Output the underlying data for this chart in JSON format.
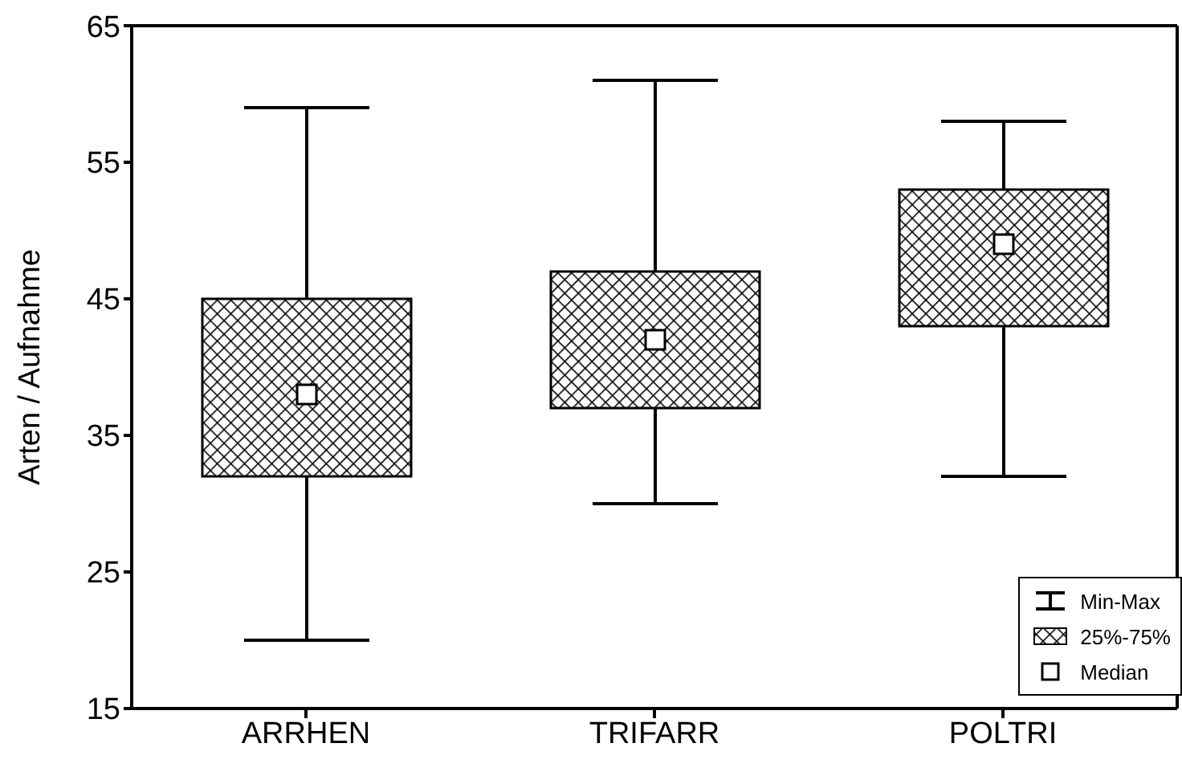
{
  "chart_data": {
    "type": "box",
    "ylabel": "Arten / Aufnahme",
    "categories": [
      "ARRHEN",
      "TRIFARR",
      "POLTRI"
    ],
    "boxes": [
      {
        "low": 20,
        "q1": 32,
        "median": 38,
        "q3": 45,
        "high": 59
      },
      {
        "low": 30,
        "q1": 37,
        "median": 42,
        "q3": 47,
        "high": 61
      },
      {
        "low": 32,
        "q1": 43,
        "median": 49,
        "q3": 53,
        "high": 58
      }
    ],
    "ylim": [
      15,
      65
    ],
    "yticks": [
      15,
      25,
      35,
      45,
      55,
      65
    ],
    "annotations": [
      "Min-Max",
      "25%-75%",
      "Median"
    ],
    "color": "#000000"
  }
}
